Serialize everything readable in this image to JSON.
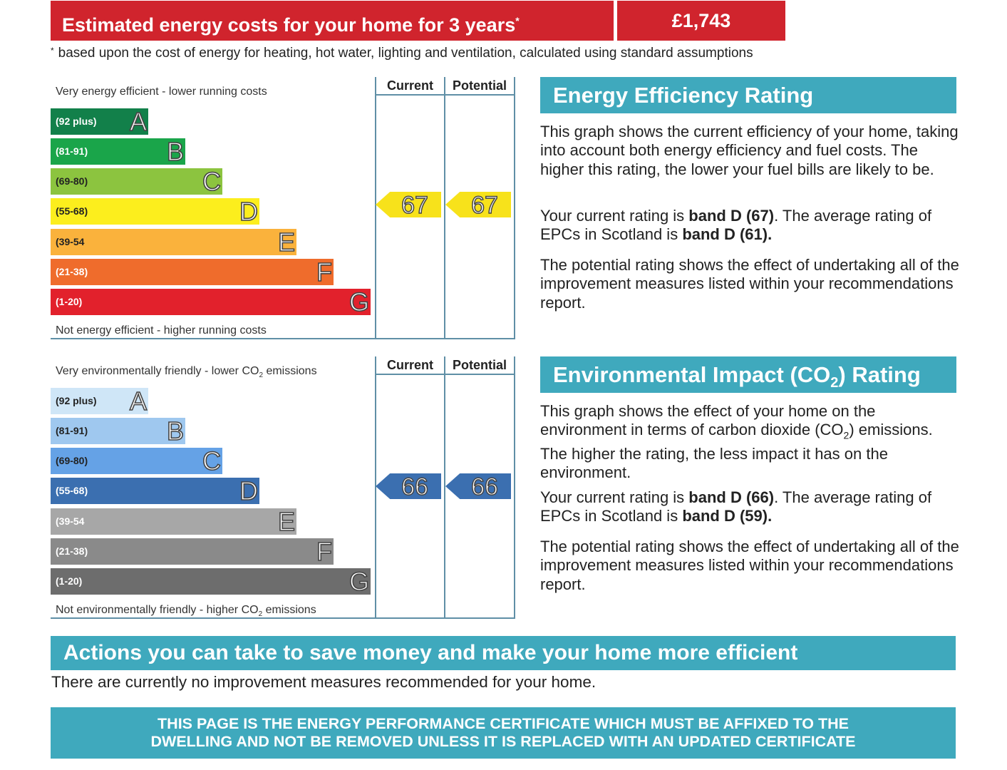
{
  "costs": {
    "title": "Estimated energy costs for your home for 3 years",
    "title_mark": "*",
    "value": "£1,743",
    "footnote_mark": "*",
    "footnote": "based upon the cost of energy for heating, hot water, lighting and ventilation, calculated using standard assumptions"
  },
  "energy_chart": {
    "top_caption": "Very energy efficient - lower running costs",
    "bottom_caption": "Not energy efficient - higher running costs",
    "col_current": "Current",
    "col_potential": "Potential",
    "current": "67",
    "potential": "67",
    "current_value": 67,
    "potential_value": 67,
    "indicator_band": "D",
    "indicator_color": "#f7e21b",
    "bands": [
      {
        "range": "(92 plus)",
        "letter": "A",
        "color": "#12804a"
      },
      {
        "range": "(81-91)",
        "letter": "B",
        "color": "#1aa54a"
      },
      {
        "range": "(69-80)",
        "letter": "C",
        "color": "#8cc43f"
      },
      {
        "range": "(55-68)",
        "letter": "D",
        "color": "#fcee1d"
      },
      {
        "range": "(39-54",
        "letter": "E",
        "color": "#fab23c"
      },
      {
        "range": "(21-38)",
        "letter": "F",
        "color": "#ef6c2c"
      },
      {
        "range": "(1-20)",
        "letter": "G",
        "color": "#e2212c"
      }
    ]
  },
  "env_chart": {
    "top_caption_pre": "Very environmentally friendly - lower CO",
    "top_caption_sub": "2",
    "top_caption_post": " emissions",
    "bottom_caption_pre": "Not environmentally friendly - higher CO",
    "bottom_caption_sub": "2",
    "bottom_caption_post": " emissions",
    "col_current": "Current",
    "col_potential": "Potential",
    "current": "66",
    "potential": "66",
    "current_value": 66,
    "potential_value": 66,
    "indicator_band": "D",
    "indicator_color": "#3b6fb0",
    "bands": [
      {
        "range": "(92 plus)",
        "letter": "A",
        "color": "#cfe6f7"
      },
      {
        "range": "(81-91)",
        "letter": "B",
        "color": "#9fc8ef"
      },
      {
        "range": "(69-80)",
        "letter": "C",
        "color": "#65a2e6"
      },
      {
        "range": "(55-68)",
        "letter": "D",
        "color": "#3b6fb0"
      },
      {
        "range": "(39-54",
        "letter": "E",
        "color": "#a7a7a7"
      },
      {
        "range": "(21-38)",
        "letter": "F",
        "color": "#8a8a8a"
      },
      {
        "range": "(1-20)",
        "letter": "G",
        "color": "#6d6d6d"
      }
    ]
  },
  "efficiency_panel": {
    "title": "Energy Efficiency Rating",
    "para1": "This graph shows the current efficiency of your home, taking into account both energy efficiency and fuel costs. The higher this rating, the lower your fuel bills are likely to be.",
    "para2_pre": "Your current rating is ",
    "para2_bold1": "band D (67)",
    "para2_mid": ". The average rating of EPCs in Scotland is ",
    "para2_bold2": "band D (61).",
    "para3": "The potential rating shows the effect of undertaking all of the improvement measures listed within your recommendations report."
  },
  "environment_panel": {
    "title_pre": "Environmental Impact (CO",
    "title_sub": "2",
    "title_post": ") Rating",
    "para1_pre": "This graph shows the effect of your home on the environment in terms of carbon dioxide (CO",
    "para1_sub": "2",
    "para1_post": ") emissions. The higher the rating, the less impact it has on the environment.",
    "para2_pre": "Your current rating is ",
    "para2_bold1": "band D (66)",
    "para2_mid": ". The average rating of EPCs in Scotland is ",
    "para2_bold2": "band D (59).",
    "para3": "The potential rating shows the effect of undertaking all of the improvement measures listed within your recommendations report."
  },
  "actions": {
    "title": "Actions you can take to save money and make your home more efficient",
    "text": "There are currently no improvement measures recommended for your home."
  },
  "notice": {
    "line1": "THIS PAGE IS THE ENERGY PERFORMANCE CERTIFICATE WHICH MUST BE AFFIXED TO THE",
    "line2": "DWELLING AND NOT BE REMOVED UNLESS IT IS REPLACED WITH AN UPDATED CERTIFICATE"
  }
}
